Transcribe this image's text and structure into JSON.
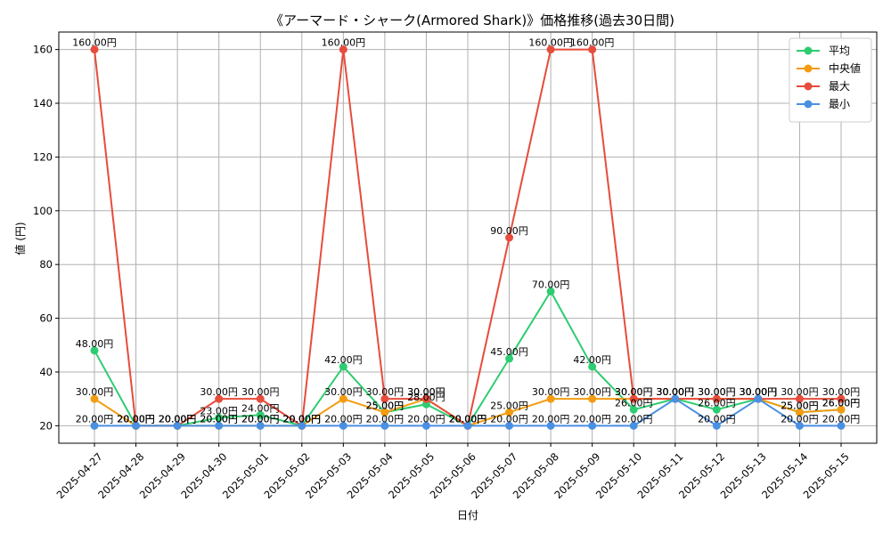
{
  "chart_data": {
    "type": "line",
    "title": "《アーマード・シャーク(Armored Shark)》価格推移(過去30日間)",
    "xlabel": "日付",
    "ylabel": "値 (円)",
    "ylim": [
      13.5,
      166.5
    ],
    "yticks": [
      20,
      40,
      60,
      80,
      100,
      120,
      140,
      160
    ],
    "grid": true,
    "legend_position": "top-right",
    "value_suffix": "円",
    "categories": [
      "2025-04-27",
      "2025-04-28",
      "2025-04-29",
      "2025-04-30",
      "2025-05-01",
      "2025-05-02",
      "2025-05-03",
      "2025-05-04",
      "2025-05-05",
      "2025-05-06",
      "2025-05-07",
      "2025-05-08",
      "2025-05-09",
      "2025-05-10",
      "2025-05-11",
      "2025-05-12",
      "2025-05-13",
      "2025-05-14",
      "2025-05-15"
    ],
    "series": [
      {
        "name": "平均",
        "color": "#2ecc71",
        "values": [
          48,
          20,
          20,
          23,
          24,
          20,
          42,
          25,
          28,
          20,
          45,
          70,
          42,
          26,
          30,
          26,
          30,
          25,
          26
        ]
      },
      {
        "name": "中央値",
        "color": "#f39c12",
        "values": [
          30,
          20,
          20,
          20,
          20,
          20,
          30,
          25,
          30,
          20,
          25,
          30,
          30,
          30,
          30,
          30,
          30,
          25,
          26
        ]
      },
      {
        "name": "最大",
        "color": "#e74c3c",
        "values": [
          160,
          20,
          20,
          30,
          30,
          20,
          160,
          30,
          30,
          20,
          90,
          160,
          160,
          30,
          30,
          30,
          30,
          30,
          30
        ]
      },
      {
        "name": "最小",
        "color": "#4a90e2",
        "values": [
          20,
          20,
          20,
          20,
          20,
          20,
          20,
          20,
          20,
          20,
          20,
          20,
          20,
          20,
          30,
          20,
          30,
          20,
          20
        ]
      }
    ]
  }
}
